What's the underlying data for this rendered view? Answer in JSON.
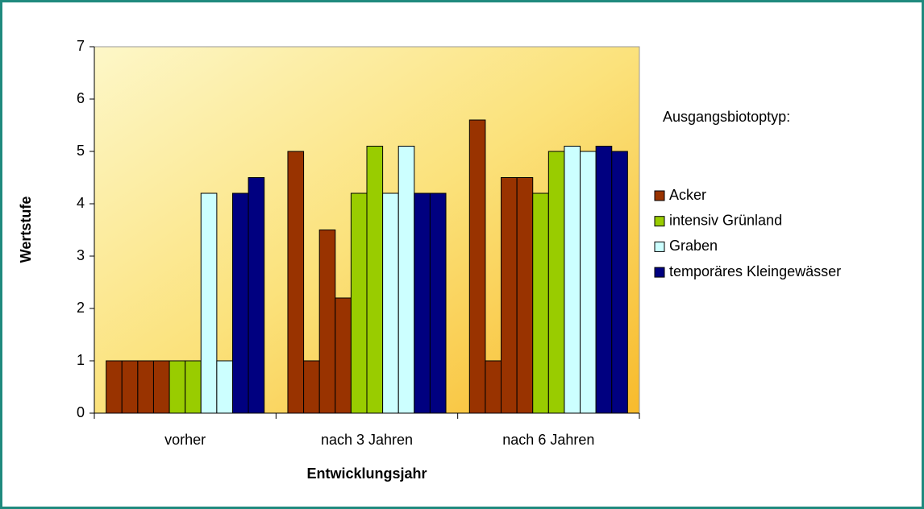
{
  "chart_data": {
    "type": "bar",
    "categories": [
      "vorher",
      "nach 3 Jahren",
      "nach 6 Jahren"
    ],
    "x_label": "Entwicklungsjahr",
    "y_label": "Wertstufe",
    "legend_title": "Ausgangsbiotoptyp:",
    "series": [
      {
        "name": "Acker",
        "color": "#993300",
        "values": [
          [
            1,
            1,
            1,
            1
          ],
          [
            5,
            1,
            3.5,
            2.2
          ],
          [
            5.6,
            1,
            4.5,
            4.5
          ]
        ]
      },
      {
        "name": "intensiv Grünland",
        "color": "#99cc00",
        "values": [
          [
            1,
            1
          ],
          [
            4.2,
            5.1
          ],
          [
            4.2,
            5
          ]
        ]
      },
      {
        "name": "Graben",
        "color": "#ccffff",
        "values": [
          [
            4.2,
            1
          ],
          [
            4.2,
            5.1
          ],
          [
            5.1,
            5
          ]
        ]
      },
      {
        "name": "temporäres Kleingewässer",
        "color": "#000080",
        "values": [
          [
            4.2,
            4.5
          ],
          [
            4.2,
            4.2
          ],
          [
            5.1,
            5
          ]
        ]
      }
    ],
    "ylim": [
      0,
      7
    ],
    "yticks": [
      0,
      1,
      2,
      3,
      4,
      5,
      6,
      7
    ],
    "legend": "right"
  }
}
